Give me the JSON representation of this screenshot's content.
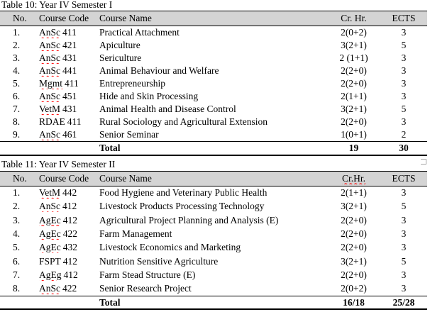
{
  "colors": {
    "header_bg": "#d4d4d4",
    "border": "#000000",
    "squiggle": "#ff0000",
    "handle": "#a6a6a6"
  },
  "tables": [
    {
      "caption": "Table 10: Year IV Semester I",
      "headers": {
        "no": "No.",
        "code": "Course Code",
        "name": "Course Name",
        "crhr": "Cr. Hr.",
        "ects": "ECTS"
      },
      "crhr_misspelled": false,
      "rows": [
        {
          "no": "1.",
          "code_word": "AnSc",
          "code_num": "411",
          "misspelled": true,
          "name": "Practical Attachment",
          "crhr": "2(0+2)",
          "ects": "3"
        },
        {
          "no": "2.",
          "code_word": "AnSc",
          "code_num": "421",
          "misspelled": true,
          "name": "Apiculture",
          "crhr": "3(2+1)",
          "ects": "5"
        },
        {
          "no": "3.",
          "code_word": "AnSc",
          "code_num": "431",
          "misspelled": true,
          "name": "Sericulture",
          "crhr": "2 (1+1)",
          "ects": "3"
        },
        {
          "no": "4.",
          "code_word": "AnSc",
          "code_num": "441",
          "misspelled": true,
          "name": "Animal Behaviour and Welfare",
          "crhr": "2(2+0)",
          "ects": "3"
        },
        {
          "no": "5.",
          "code_word": "Mgmt",
          "code_num": "411",
          "misspelled": true,
          "name": "Entrepreneurship",
          "crhr": "2(2+0)",
          "ects": "3"
        },
        {
          "no": "6.",
          "code_word": "AnSc",
          "code_num": "451",
          "misspelled": true,
          "name": "Hide and Skin Processing",
          "crhr": "2(1+1)",
          "ects": "3"
        },
        {
          "no": "7.",
          "code_word": "VetM",
          "code_num": "431",
          "misspelled": true,
          "name": "Animal Health and Disease Control",
          "crhr": "3(2+1)",
          "ects": "5"
        },
        {
          "no": "8.",
          "code_word": "RDAE",
          "code_num": "411",
          "misspelled": false,
          "name": "Rural Sociology and Agricultural Extension",
          "crhr": "2(2+0)",
          "ects": "3"
        },
        {
          "no": "9.",
          "code_word": "AnSc",
          "code_num": "461",
          "misspelled": true,
          "name": "Senior Seminar",
          "crhr": "1(0+1)",
          "ects": "2"
        }
      ],
      "total": {
        "label": "Total",
        "crhr": "19",
        "ects": "30"
      }
    },
    {
      "caption": "Table 11: Year IV Semester II",
      "headers": {
        "no": "No.",
        "code": "Course Code",
        "name": "Course Name",
        "crhr": "Cr.Hr.",
        "ects": "ECTS"
      },
      "crhr_misspelled": true,
      "rows": [
        {
          "no": "1.",
          "code_word": "VetM",
          "code_num": "442",
          "misspelled": true,
          "name": "Food Hygiene and Veterinary Public Health",
          "crhr": "2(1+1)",
          "ects": "3"
        },
        {
          "no": "2.",
          "code_word": "AnSc",
          "code_num": "412",
          "misspelled": true,
          "name": "Livestock Products Processing Technology",
          "crhr": "3(2+1)",
          "ects": "5"
        },
        {
          "no": "3.",
          "code_word": "AgEc",
          "code_num": "412",
          "misspelled": true,
          "name": "Agricultural Project Planning and Analysis (E)",
          "crhr": "2(2+0)",
          "ects": "3"
        },
        {
          "no": "4.",
          "code_word": "AgEc",
          "code_num": "422",
          "misspelled": true,
          "name": "Farm Management",
          "crhr": "2(2+0)",
          "ects": "3"
        },
        {
          "no": "5.",
          "code_word": "AgEc",
          "code_num": "432",
          "misspelled": true,
          "name": "Livestock Economics and Marketing",
          "crhr": "2(2+0)",
          "ects": "3"
        },
        {
          "no": "6.",
          "code_word": "FSPT",
          "code_num": "412",
          "misspelled": false,
          "name": "Nutrition Sensitive Agriculture",
          "crhr": "3(2+1)",
          "ects": "5"
        },
        {
          "no": "7.",
          "code_word": "AgEg",
          "code_num": "412",
          "misspelled": true,
          "name": "Farm Stead Structure (E)",
          "crhr": "2(2+0)",
          "ects": "3"
        },
        {
          "no": "8.",
          "code_word": "AnSc",
          "code_num": "422",
          "misspelled": true,
          "name": "Senior Research Project",
          "crhr": "2(0+2)",
          "ects": "3"
        }
      ],
      "total": {
        "label": "Total",
        "crhr": "16/18",
        "ects": "25/28"
      }
    }
  ]
}
